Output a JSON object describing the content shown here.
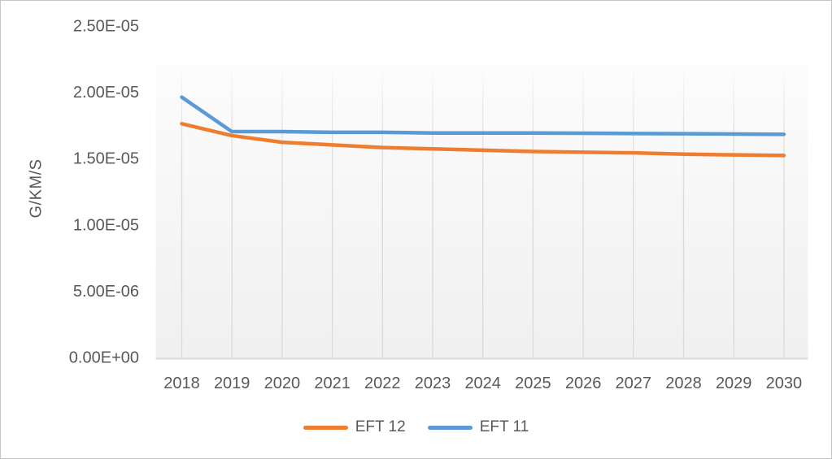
{
  "window": {
    "background": "#ffffff",
    "border_color": "#c6c6c6"
  },
  "chart_data": {
    "type": "line",
    "title": "",
    "xlabel": "",
    "ylabel": "G/KM/S",
    "categories": [
      "2018",
      "2019",
      "2020",
      "2021",
      "2022",
      "2023",
      "2024",
      "2025",
      "2026",
      "2027",
      "2028",
      "2029",
      "2030"
    ],
    "series": [
      {
        "name": "EFT 12",
        "color": "#ED7D31",
        "values": [
          1.76e-05,
          1.67e-05,
          1.62e-05,
          1.6e-05,
          1.58e-05,
          1.57e-05,
          1.56e-05,
          1.55e-05,
          1.545e-05,
          1.54e-05,
          1.53e-05,
          1.525e-05,
          1.52e-05
        ]
      },
      {
        "name": "EFT 11",
        "color": "#5B9BD5",
        "values": [
          1.96e-05,
          1.7e-05,
          1.7e-05,
          1.695e-05,
          1.695e-05,
          1.69e-05,
          1.69e-05,
          1.69e-05,
          1.688e-05,
          1.686e-05,
          1.684e-05,
          1.682e-05,
          1.68e-05
        ]
      }
    ],
    "y_ticks": [
      "0.00E+00",
      "5.00E-06",
      "1.00E-05",
      "1.50E-05",
      "2.00E-05",
      "2.50E-05"
    ],
    "ylim": [
      0,
      2.5e-05
    ],
    "y_tick_interval": 5e-06,
    "grid": "vertical-only",
    "legend_position": "bottom",
    "text_color": "#595959",
    "gridline_color": "#D9D9D9",
    "axis_line_color": "#D9D9D9",
    "plot_bg_top": "#FCFCFC",
    "plot_bg_bottom": "#F0F0F0"
  }
}
